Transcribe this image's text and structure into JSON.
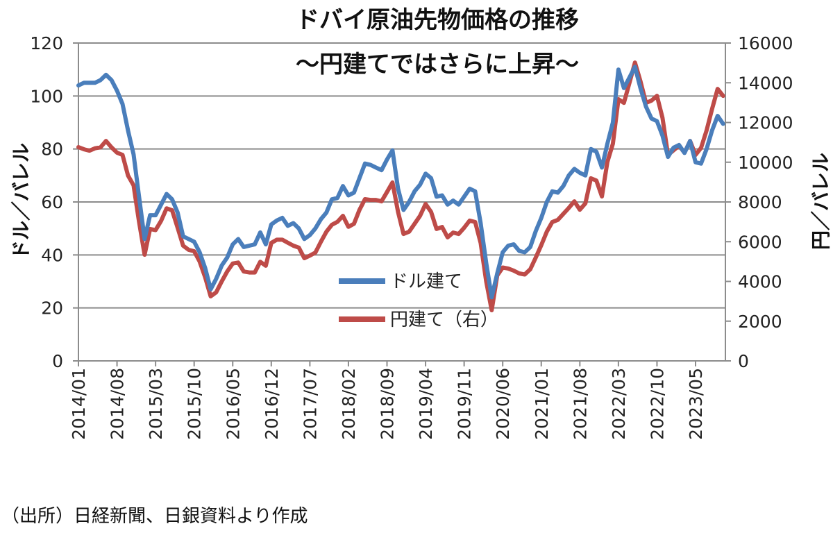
{
  "chart_data": {
    "type": "line",
    "title": "ドバイ原油先物価格の推移",
    "subtitle": "～円建てではさらに上昇～",
    "ylabel": "ドル／バレル",
    "ylabel_right": "円／バレル",
    "ylim": [
      0,
      120
    ],
    "ylim_right": [
      0,
      16000
    ],
    "yticks": [
      0,
      20,
      40,
      60,
      80,
      100,
      120
    ],
    "yticks_right": [
      0,
      2000,
      4000,
      6000,
      8000,
      10000,
      12000,
      14000,
      16000
    ],
    "xtick_labels": [
      "2014/01",
      "2014/08",
      "2015/03",
      "2015/10",
      "2016/05",
      "2016/12",
      "2017/07",
      "2018/02",
      "2018/09",
      "2019/04",
      "2019/11",
      "2020/06",
      "2021/01",
      "2021/08",
      "2022/03",
      "2022/10",
      "2023/05"
    ],
    "grid": true,
    "legend_position": "center",
    "source_note": "（出所）日経新聞、日銀資料より作成",
    "x": [
      "2014/01",
      "2014/02",
      "2014/03",
      "2014/04",
      "2014/05",
      "2014/06",
      "2014/07",
      "2014/08",
      "2014/09",
      "2014/10",
      "2014/11",
      "2014/12",
      "2015/01",
      "2015/02",
      "2015/03",
      "2015/04",
      "2015/05",
      "2015/06",
      "2015/07",
      "2015/08",
      "2015/09",
      "2015/10",
      "2015/11",
      "2015/12",
      "2016/01",
      "2016/02",
      "2016/03",
      "2016/04",
      "2016/05",
      "2016/06",
      "2016/07",
      "2016/08",
      "2016/09",
      "2016/10",
      "2016/11",
      "2016/12",
      "2017/01",
      "2017/02",
      "2017/03",
      "2017/04",
      "2017/05",
      "2017/06",
      "2017/07",
      "2017/08",
      "2017/09",
      "2017/10",
      "2017/11",
      "2017/12",
      "2018/01",
      "2018/02",
      "2018/03",
      "2018/04",
      "2018/05",
      "2018/06",
      "2018/07",
      "2018/08",
      "2018/09",
      "2018/10",
      "2018/11",
      "2018/12",
      "2019/01",
      "2019/02",
      "2019/03",
      "2019/04",
      "2019/05",
      "2019/06",
      "2019/07",
      "2019/08",
      "2019/09",
      "2019/10",
      "2019/11",
      "2019/12",
      "2020/01",
      "2020/02",
      "2020/03",
      "2020/04",
      "2020/05",
      "2020/06",
      "2020/07",
      "2020/08",
      "2020/09",
      "2020/10",
      "2020/11",
      "2020/12",
      "2021/01",
      "2021/02",
      "2021/03",
      "2021/04",
      "2021/05",
      "2021/06",
      "2021/07",
      "2021/08",
      "2021/09",
      "2021/10",
      "2021/11",
      "2021/12",
      "2022/01",
      "2022/02",
      "2022/03",
      "2022/04",
      "2022/05",
      "2022/06",
      "2022/07",
      "2022/08",
      "2022/09",
      "2022/10",
      "2022/11",
      "2022/12",
      "2023/01",
      "2023/02",
      "2023/03",
      "2023/04",
      "2023/05",
      "2023/06",
      "2023/07",
      "2023/08",
      "2023/09",
      "2023/10"
    ],
    "series": [
      {
        "name": "ドル建て",
        "axis": "left",
        "color": "#4a7ebb",
        "values": [
          104,
          105,
          105,
          105,
          106,
          108,
          106,
          102,
          97,
          87,
          78,
          62,
          46,
          55,
          55,
          59,
          63,
          61,
          56,
          47,
          46,
          45,
          41,
          35,
          27,
          31,
          36,
          39,
          44,
          46,
          43,
          43.5,
          44,
          48.5,
          44,
          51.5,
          53,
          54,
          51,
          52,
          50,
          46,
          47.5,
          50,
          53.5,
          56,
          61,
          61.5,
          66,
          62.5,
          63.5,
          69,
          74.5,
          74,
          73,
          72,
          76,
          79.5,
          65,
          57,
          60,
          64,
          66.5,
          70.7,
          69,
          62,
          62.5,
          59,
          60.5,
          59,
          62,
          65,
          64,
          52,
          37,
          24,
          33,
          41,
          43.5,
          44,
          41.5,
          41,
          43,
          49,
          54,
          60,
          64,
          63.5,
          66,
          70,
          72.5,
          71,
          70,
          80,
          79,
          73,
          82,
          90,
          110,
          103,
          107,
          111,
          103,
          96,
          91.5,
          90.5,
          85,
          77,
          80.5,
          81.5,
          78.5,
          83,
          75,
          74.5,
          80,
          87,
          92.5,
          89.5
        ]
      },
      {
        "name": "円建て（右）",
        "axis": "right",
        "color": "#be4b48",
        "values": [
          10760,
          10650,
          10580,
          10700,
          10750,
          11070,
          10750,
          10480,
          10370,
          9330,
          8840,
          7000,
          5340,
          6640,
          6580,
          7050,
          7680,
          7580,
          6700,
          5800,
          5590,
          5520,
          5000,
          4200,
          3250,
          3450,
          4000,
          4500,
          4900,
          4950,
          4500,
          4450,
          4450,
          4990,
          4790,
          5940,
          6100,
          6100,
          5950,
          5800,
          5700,
          5170,
          5300,
          5450,
          6000,
          6500,
          6850,
          7000,
          7300,
          6750,
          6900,
          7600,
          8140,
          8100,
          8100,
          8030,
          8500,
          8980,
          7500,
          6390,
          6500,
          6900,
          7300,
          7900,
          7500,
          6640,
          6740,
          6220,
          6460,
          6390,
          6700,
          7060,
          6990,
          5940,
          4000,
          2550,
          4300,
          4700,
          4650,
          4540,
          4400,
          4350,
          4610,
          5200,
          5830,
          6500,
          6990,
          7100,
          7400,
          7700,
          8030,
          7610,
          7930,
          9190,
          9080,
          8280,
          10020,
          10930,
          13170,
          12990,
          14000,
          15020,
          14080,
          12990,
          13100,
          13340,
          12230,
          10370,
          10600,
          10830,
          10480,
          11070,
          10370,
          10720,
          11600,
          12680,
          13690,
          13340
        ]
      }
    ]
  }
}
